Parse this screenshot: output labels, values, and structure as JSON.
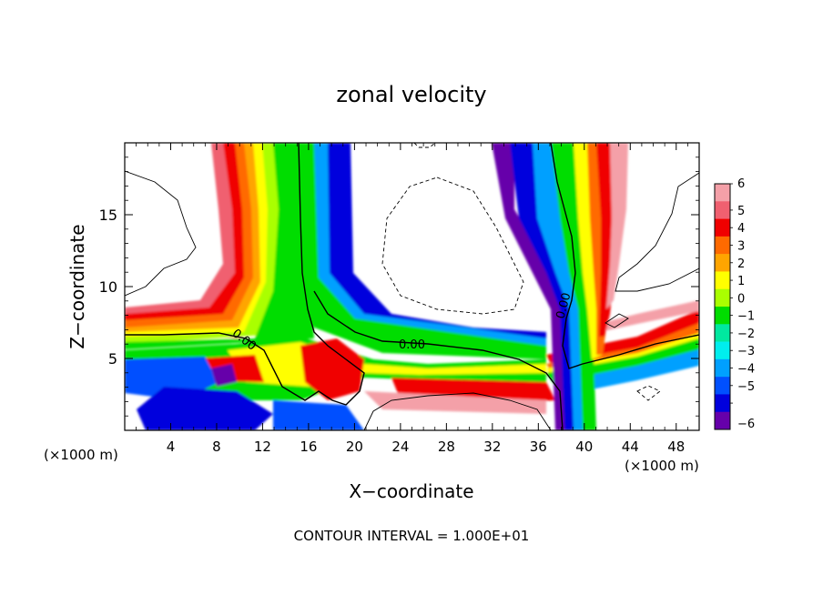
{
  "chart_data": {
    "type": "heatmap",
    "title": "zonal velocity",
    "xlabel": "X−coordinate",
    "ylabel": "Z−coordinate",
    "x_unit_left": "(×1000 m)",
    "x_unit_right": "(×1000 m)",
    "footer": "CONTOUR INTERVAL = 1.000E+01",
    "xlim": [
      0,
      50
    ],
    "ylim": [
      0,
      20
    ],
    "x_ticks": [
      4,
      8,
      12,
      16,
      20,
      24,
      28,
      32,
      36,
      40,
      44,
      48
    ],
    "x_tick_labels": [
      "4",
      "8",
      "12",
      "16",
      "20",
      "24",
      "28",
      "32",
      "36",
      "40",
      "44",
      "48"
    ],
    "y_ticks": [
      5,
      10,
      15
    ],
    "y_tick_labels": [
      "5",
      "10",
      "15"
    ],
    "colorbar": {
      "levels": [
        6,
        5,
        4,
        3,
        2,
        1,
        0,
        -1,
        -2,
        -3,
        -4,
        -5,
        -6
      ],
      "labels": [
        "6",
        "5",
        "4",
        "3",
        "2",
        "1",
        "0",
        "−1",
        "−2",
        "−3",
        "−4",
        "−5",
        "−6"
      ],
      "colors": [
        "#f4a0a8",
        "#f06070",
        "#f00000",
        "#ff6a00",
        "#ffa500",
        "#ffff00",
        "#aaff00",
        "#00dd00",
        "#00e8a0",
        "#00eeee",
        "#00a0ff",
        "#0050ff",
        "#0000dd",
        "#6600aa"
      ]
    },
    "contour_labels": [
      {
        "text": "0.00",
        "x": 10.2,
        "z": 6.1,
        "rot": 38
      },
      {
        "text": "0.00",
        "x": 25.0,
        "z": 5.7,
        "rot": 0
      },
      {
        "text": "0.00",
        "x": 38.5,
        "z": 8.6,
        "rot": -75
      }
    ]
  }
}
